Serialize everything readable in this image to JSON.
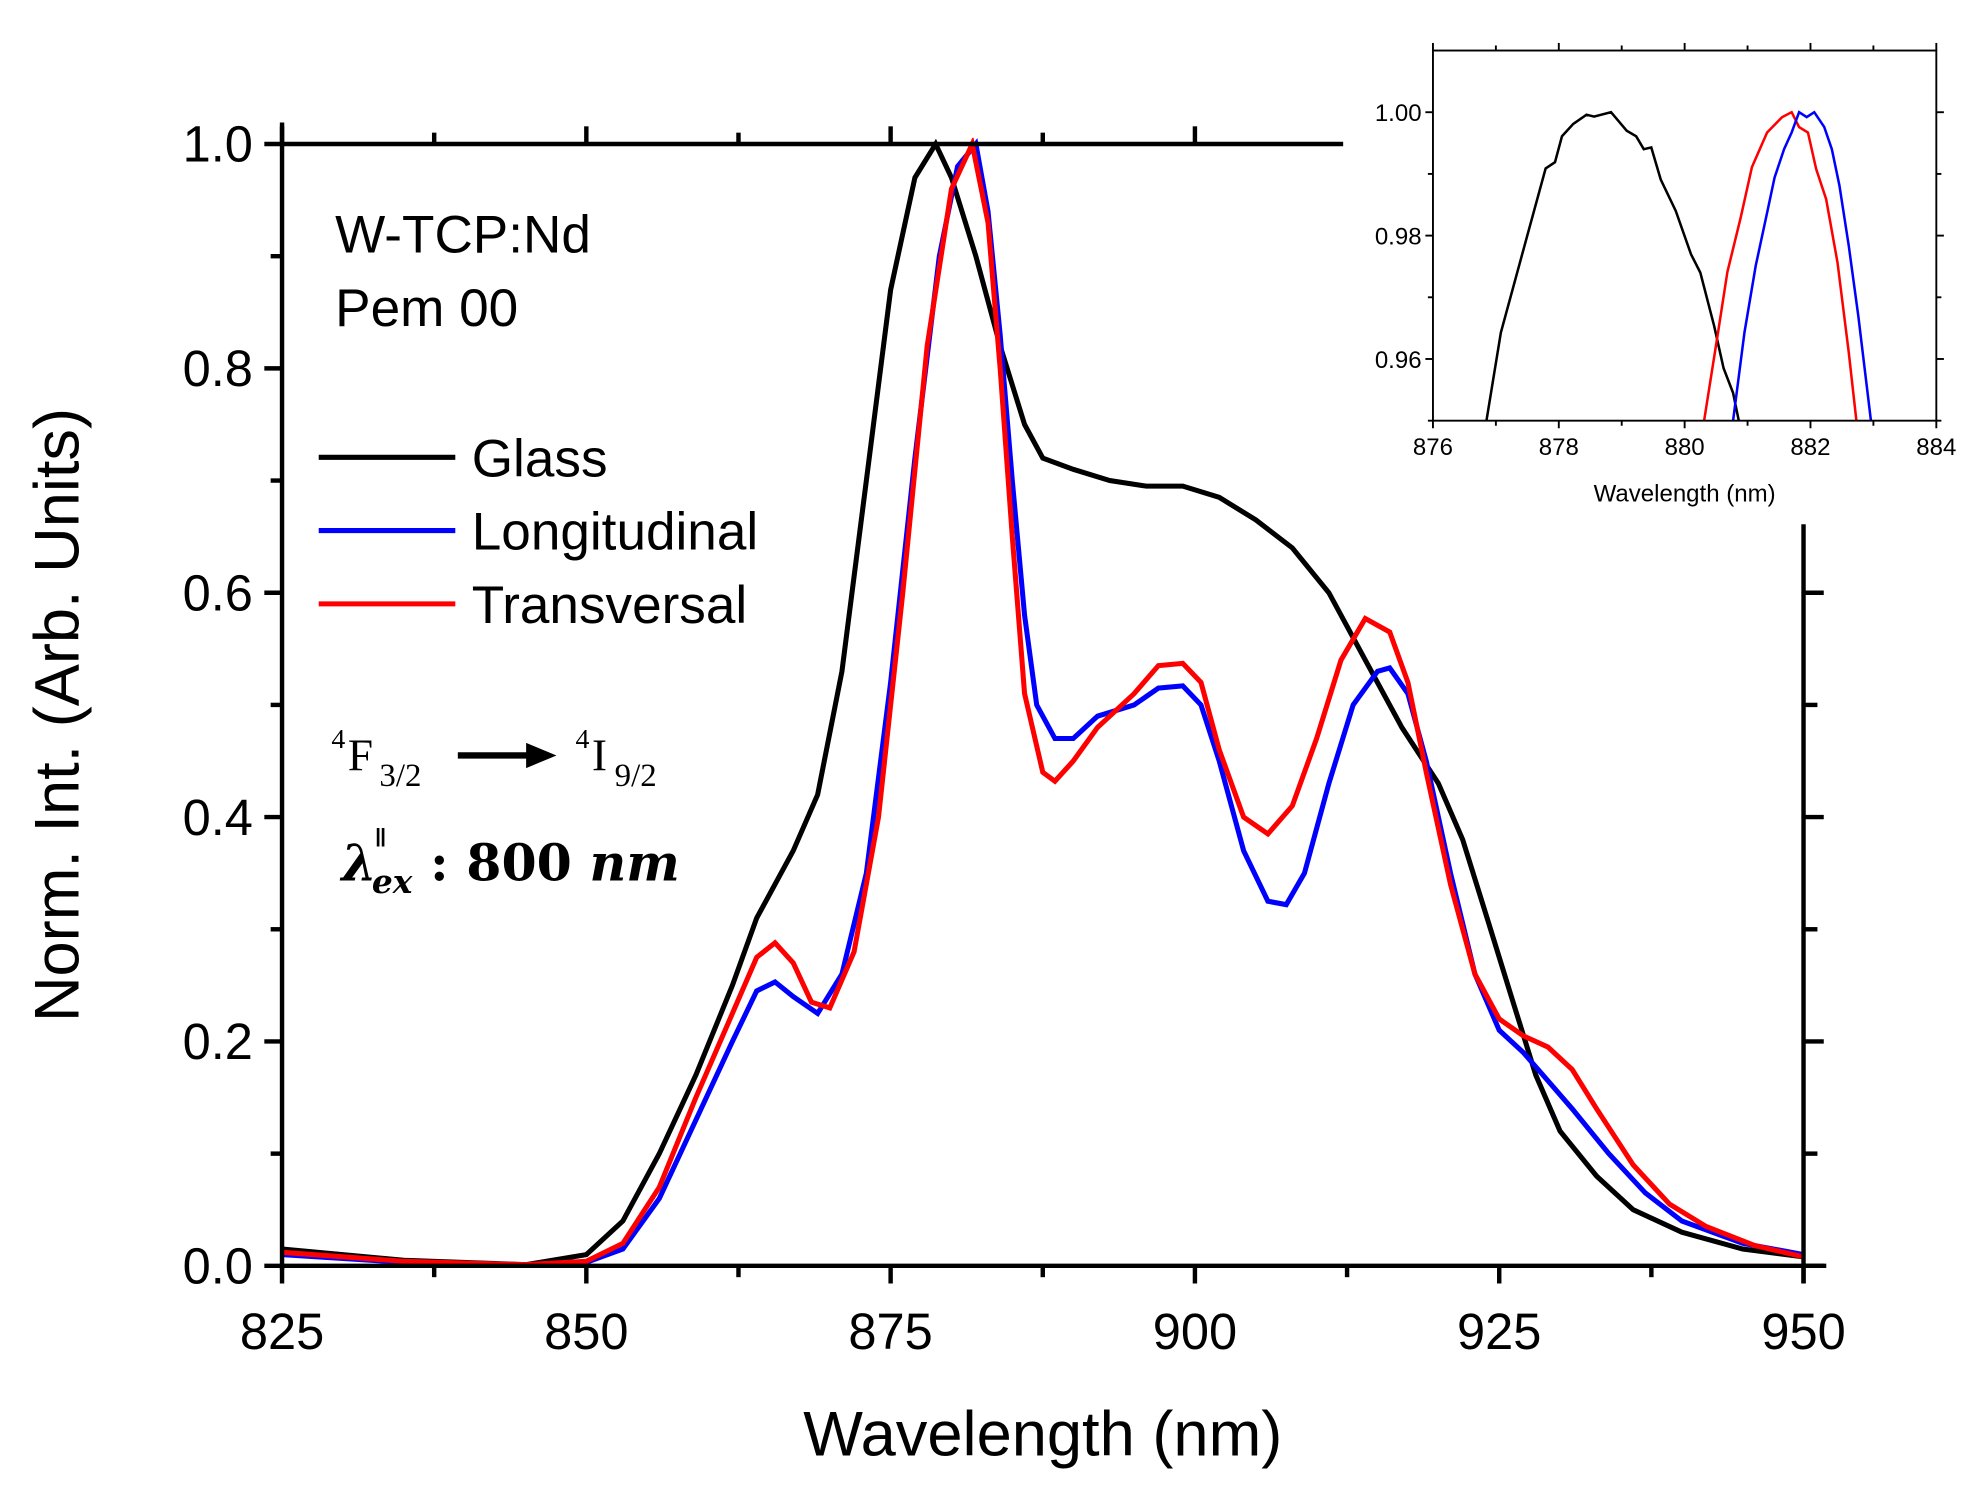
{
  "chart_data": [
    {
      "type": "line",
      "xlabel": "Wavelength (nm)",
      "ylabel": "Norm. Int. (Arb. Units)",
      "xlim": [
        825,
        950
      ],
      "ylim": [
        0,
        1.0
      ],
      "xticks": [
        "825",
        "850",
        "875",
        "900",
        "925",
        "950"
      ],
      "yticks": [
        "0.0",
        "0.2",
        "0.4",
        "0.6",
        "0.8",
        "1.0"
      ],
      "grid": false,
      "legend_placement": "upper-left",
      "annotations": {
        "sample": "W-TCP:Nd",
        "sample_id": "Pem 00",
        "transition_from": "4F3/2",
        "transition_to": "4I9/2",
        "excitation": "λex∥: 800 nm"
      },
      "series": [
        {
          "name": "Glass",
          "color": "#000000",
          "points": [
            [
              825,
              0.015
            ],
            [
              835,
              0.005
            ],
            [
              845,
              0.001
            ],
            [
              850,
              0.01
            ],
            [
              853,
              0.04
            ],
            [
              856,
              0.1
            ],
            [
              859,
              0.17
            ],
            [
              862,
              0.25
            ],
            [
              864,
              0.31
            ],
            [
              867,
              0.37
            ],
            [
              869,
              0.42
            ],
            [
              871,
              0.53
            ],
            [
              873,
              0.7
            ],
            [
              875,
              0.87
            ],
            [
              877,
              0.97
            ],
            [
              878.7,
              1.0
            ],
            [
              880,
              0.97
            ],
            [
              882,
              0.9
            ],
            [
              884,
              0.82
            ],
            [
              886,
              0.75
            ],
            [
              887.5,
              0.72
            ],
            [
              890,
              0.71
            ],
            [
              893,
              0.7
            ],
            [
              896,
              0.695
            ],
            [
              899,
              0.695
            ],
            [
              902,
              0.685
            ],
            [
              905,
              0.665
            ],
            [
              908,
              0.64
            ],
            [
              911,
              0.6
            ],
            [
              914,
              0.54
            ],
            [
              917,
              0.48
            ],
            [
              920,
              0.43
            ],
            [
              922,
              0.38
            ],
            [
              924,
              0.31
            ],
            [
              926,
              0.24
            ],
            [
              928,
              0.17
            ],
            [
              930,
              0.12
            ],
            [
              933,
              0.08
            ],
            [
              936,
              0.05
            ],
            [
              940,
              0.03
            ],
            [
              945,
              0.015
            ],
            [
              950,
              0.008
            ]
          ]
        },
        {
          "name": "Longitudinal",
          "color": "#0000ff",
          "points": [
            [
              825,
              0.01
            ],
            [
              835,
              0.003
            ],
            [
              845,
              0.001
            ],
            [
              850,
              0.003
            ],
            [
              853,
              0.015
            ],
            [
              856,
              0.06
            ],
            [
              859,
              0.13
            ],
            [
              862,
              0.2
            ],
            [
              864,
              0.245
            ],
            [
              865.5,
              0.253
            ],
            [
              867,
              0.24
            ],
            [
              869,
              0.225
            ],
            [
              871,
              0.26
            ],
            [
              873,
              0.35
            ],
            [
              875,
              0.52
            ],
            [
              877,
              0.72
            ],
            [
              879,
              0.9
            ],
            [
              880.5,
              0.98
            ],
            [
              882,
              1.0
            ],
            [
              883,
              0.94
            ],
            [
              884,
              0.83
            ],
            [
              885,
              0.7
            ],
            [
              886,
              0.58
            ],
            [
              887,
              0.5
            ],
            [
              888.5,
              0.47
            ],
            [
              890,
              0.47
            ],
            [
              892,
              0.49
            ],
            [
              895,
              0.5
            ],
            [
              897,
              0.515
            ],
            [
              899,
              0.517
            ],
            [
              900.5,
              0.5
            ],
            [
              902,
              0.45
            ],
            [
              904,
              0.37
            ],
            [
              906,
              0.325
            ],
            [
              907.5,
              0.322
            ],
            [
              909,
              0.35
            ],
            [
              911,
              0.43
            ],
            [
              913,
              0.5
            ],
            [
              915,
              0.53
            ],
            [
              916,
              0.533
            ],
            [
              917.5,
              0.51
            ],
            [
              919,
              0.45
            ],
            [
              921,
              0.35
            ],
            [
              923,
              0.26
            ],
            [
              925,
              0.21
            ],
            [
              927,
              0.19
            ],
            [
              929,
              0.165
            ],
            [
              931,
              0.14
            ],
            [
              934,
              0.1
            ],
            [
              937,
              0.065
            ],
            [
              940,
              0.04
            ],
            [
              945,
              0.02
            ],
            [
              950,
              0.01
            ]
          ]
        },
        {
          "name": "Transversal",
          "color": "#ff0000",
          "points": [
            [
              825,
              0.012
            ],
            [
              835,
              0.004
            ],
            [
              845,
              0.001
            ],
            [
              850,
              0.004
            ],
            [
              853,
              0.02
            ],
            [
              856,
              0.07
            ],
            [
              859,
              0.15
            ],
            [
              862,
              0.225
            ],
            [
              864,
              0.275
            ],
            [
              865.5,
              0.288
            ],
            [
              867,
              0.27
            ],
            [
              868.5,
              0.235
            ],
            [
              870,
              0.23
            ],
            [
              872,
              0.28
            ],
            [
              874,
              0.4
            ],
            [
              876,
              0.6
            ],
            [
              878,
              0.82
            ],
            [
              880,
              0.96
            ],
            [
              881.7,
              1.0
            ],
            [
              883,
              0.93
            ],
            [
              884,
              0.8
            ],
            [
              885,
              0.65
            ],
            [
              886,
              0.51
            ],
            [
              887.5,
              0.44
            ],
            [
              888.5,
              0.432
            ],
            [
              890,
              0.45
            ],
            [
              892,
              0.48
            ],
            [
              895,
              0.51
            ],
            [
              897,
              0.535
            ],
            [
              899,
              0.537
            ],
            [
              900.5,
              0.52
            ],
            [
              902,
              0.46
            ],
            [
              904,
              0.4
            ],
            [
              906,
              0.385
            ],
            [
              908,
              0.41
            ],
            [
              910,
              0.47
            ],
            [
              912,
              0.54
            ],
            [
              914,
              0.577
            ],
            [
              916,
              0.565
            ],
            [
              917.5,
              0.52
            ],
            [
              919,
              0.44
            ],
            [
              921,
              0.34
            ],
            [
              923,
              0.26
            ],
            [
              925,
              0.22
            ],
            [
              927,
              0.205
            ],
            [
              929,
              0.195
            ],
            [
              931,
              0.175
            ],
            [
              933,
              0.14
            ],
            [
              936,
              0.09
            ],
            [
              939,
              0.055
            ],
            [
              942,
              0.035
            ],
            [
              946,
              0.018
            ],
            [
              950,
              0.008
            ]
          ]
        }
      ]
    },
    {
      "type": "line",
      "xlabel": "Wavelength (nm)",
      "ylabel": "",
      "xlim": [
        876,
        884
      ],
      "ylim": [
        0.95,
        1.01
      ],
      "xticks": [
        "876",
        "878",
        "880",
        "882",
        "884"
      ],
      "yticks": [
        "0.96",
        "0.98",
        "1.00"
      ],
      "grid": false,
      "series": [
        {
          "color": "#000000",
          "points": [
            [
              876.85,
              0.95
            ],
            [
              877.08,
              0.9643
            ],
            [
              877.47,
              0.9789
            ],
            [
              877.79,
              0.9909
            ],
            [
              877.94,
              0.9919
            ],
            [
              878.05,
              0.9961
            ],
            [
              878.23,
              0.9981
            ],
            [
              878.44,
              0.9996
            ],
            [
              878.56,
              0.9993
            ],
            [
              878.83,
              1.0
            ],
            [
              879.08,
              0.997
            ],
            [
              879.23,
              0.9961
            ],
            [
              879.35,
              0.994
            ],
            [
              879.47,
              0.9943
            ],
            [
              879.62,
              0.9891
            ],
            [
              879.86,
              0.984
            ],
            [
              880.1,
              0.977
            ],
            [
              880.25,
              0.974
            ],
            [
              880.47,
              0.9653
            ],
            [
              880.62,
              0.9585
            ],
            [
              880.77,
              0.9545
            ],
            [
              880.86,
              0.95
            ]
          ]
        },
        {
          "color": "#ff0000",
          "points": [
            [
              880.31,
              0.95
            ],
            [
              880.53,
              0.9643
            ],
            [
              880.68,
              0.9741
            ],
            [
              880.89,
              0.9829
            ],
            [
              881.07,
              0.9911
            ],
            [
              881.31,
              0.9967
            ],
            [
              881.55,
              0.9992
            ],
            [
              881.7,
              1.0
            ],
            [
              881.82,
              0.9976
            ],
            [
              881.96,
              0.9967
            ],
            [
              882.09,
              0.9908
            ],
            [
              882.25,
              0.9859
            ],
            [
              882.43,
              0.9756
            ],
            [
              882.61,
              0.961
            ],
            [
              882.73,
              0.95
            ]
          ]
        },
        {
          "color": "#0000ff",
          "points": [
            [
              880.77,
              0.95
            ],
            [
              880.95,
              0.9643
            ],
            [
              881.13,
              0.9751
            ],
            [
              881.31,
              0.9837
            ],
            [
              881.43,
              0.9894
            ],
            [
              881.58,
              0.994
            ],
            [
              881.7,
              0.9967
            ],
            [
              881.82,
              1.0
            ],
            [
              881.94,
              0.9992
            ],
            [
              882.06,
              1.0
            ],
            [
              882.22,
              0.9976
            ],
            [
              882.34,
              0.994
            ],
            [
              882.46,
              0.9881
            ],
            [
              882.61,
              0.9783
            ],
            [
              882.76,
              0.967
            ],
            [
              882.96,
              0.95
            ]
          ]
        }
      ]
    }
  ]
}
